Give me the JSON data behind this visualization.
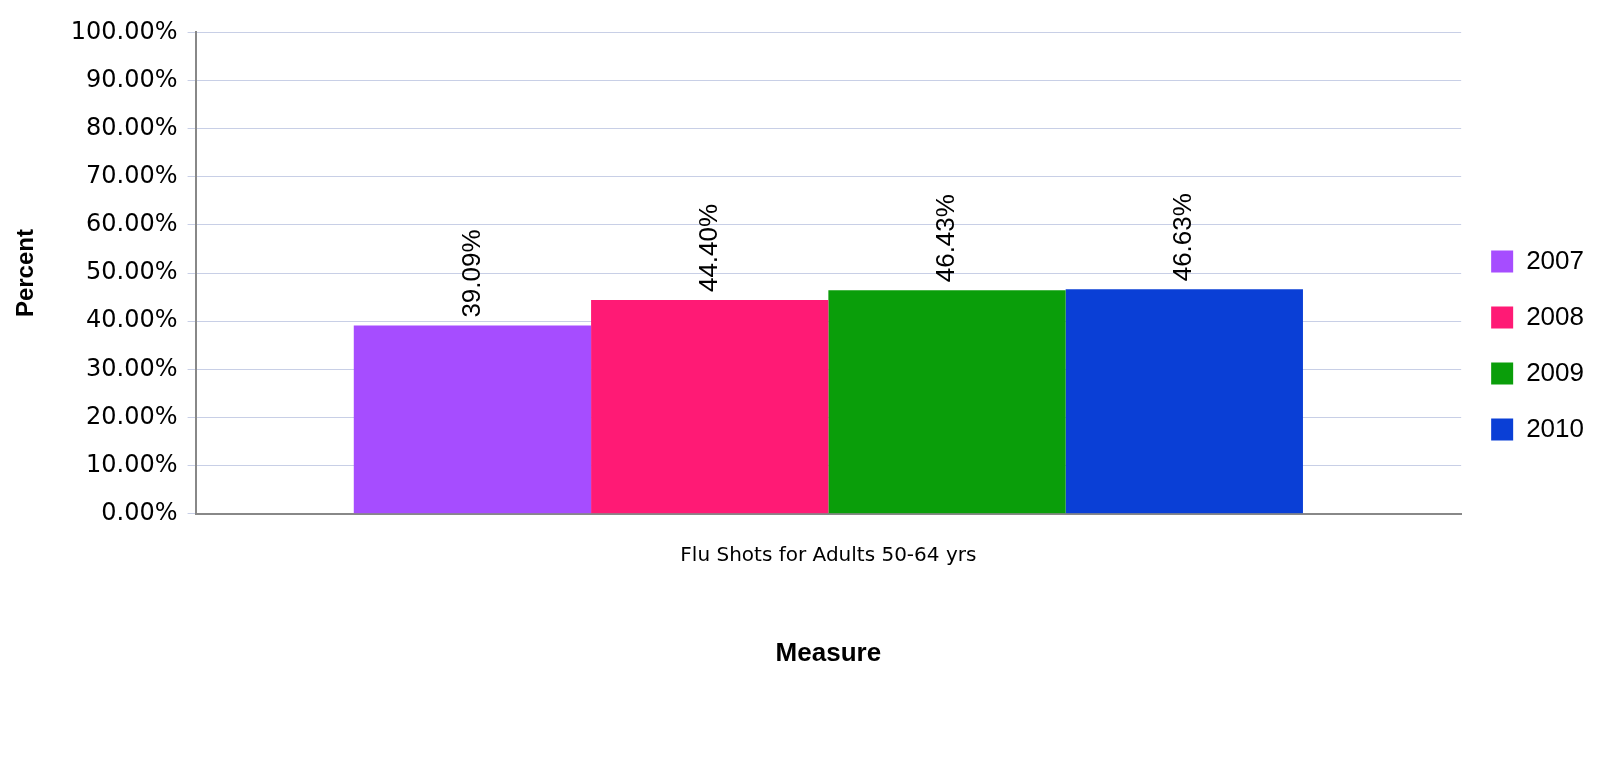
{
  "chart_data": {
    "type": "bar",
    "xlabel": "Measure",
    "ylabel": "Percent",
    "categories": [
      "Flu Shots for Adults 50-64 yrs"
    ],
    "series": [
      {
        "name": "2007",
        "color": "#a64dff",
        "values": [
          39.09
        ],
        "value_labels": [
          "39.09%"
        ]
      },
      {
        "name": "2008",
        "color": "#ff1a75",
        "values": [
          44.4
        ],
        "value_labels": [
          "44.40%"
        ]
      },
      {
        "name": "2009",
        "color": "#0a9e0a",
        "values": [
          46.43
        ],
        "value_labels": [
          "46.43%"
        ]
      },
      {
        "name": "2010",
        "color": "#0a3fd6",
        "values": [
          46.63
        ],
        "value_labels": [
          "46.63%"
        ]
      }
    ],
    "ylim": [
      0,
      100
    ],
    "yticks": [
      {
        "value": 0,
        "label": "0.00%"
      },
      {
        "value": 10,
        "label": "10.00%"
      },
      {
        "value": 20,
        "label": "20.00%"
      },
      {
        "value": 30,
        "label": "30.00%"
      },
      {
        "value": 40,
        "label": "40.00%"
      },
      {
        "value": 50,
        "label": "50.00%"
      },
      {
        "value": 60,
        "label": "60.00%"
      },
      {
        "value": 70,
        "label": "70.00%"
      },
      {
        "value": 80,
        "label": "80.00%"
      },
      {
        "value": 90,
        "label": "90.00%"
      },
      {
        "value": 100,
        "label": "100.00%"
      }
    ],
    "grid": "y",
    "legend": "right"
  }
}
